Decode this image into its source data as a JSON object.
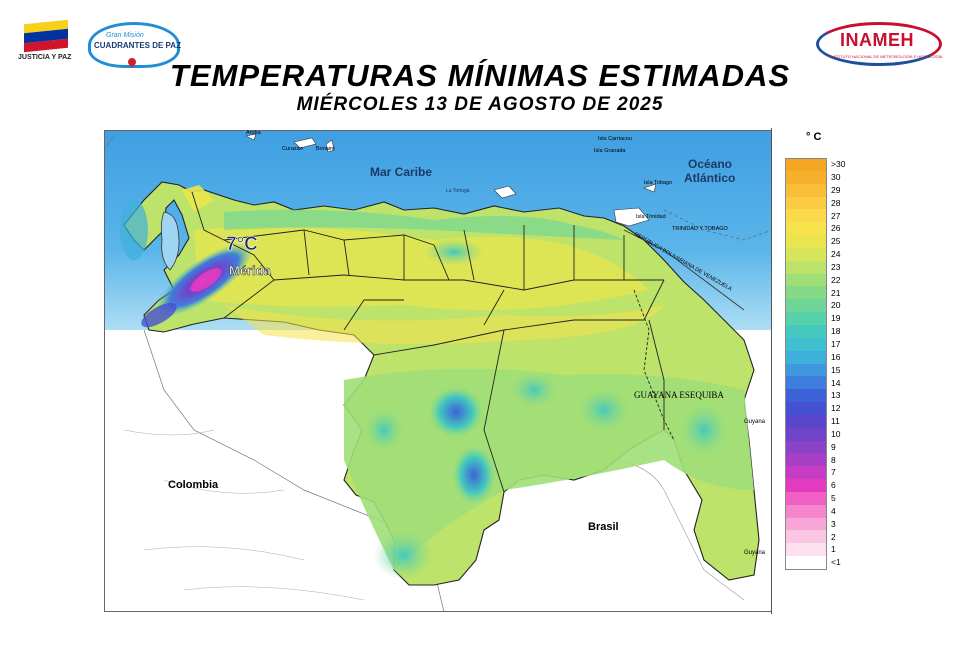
{
  "header": {
    "left_logo_caption": "JUSTICIA Y PAZ",
    "gm_logo_line1": "Gran Misión",
    "gm_logo_line2": "CUADRANTES DE PAZ",
    "inameh_logo_name": "INAMEH",
    "inameh_logo_subtitle": "INSTITUTO NACIONAL DE METEOROLOGÍA E HIDROLOGÍA",
    "title": "TEMPERATURAS MÍNIMAS ESTIMADAS",
    "subtitle": "MIÉRCOLES 13 DE AGOSTO DE 2025"
  },
  "colors": {
    "flag_yellow": "#f7d117",
    "flag_blue": "#0033a0",
    "flag_red": "#cf142b",
    "sea_deep": "#4aa8e6",
    "sea_shallow": "#bfe6f6"
  },
  "map": {
    "highlight_value": "7°C",
    "highlight_place": "Mérida",
    "labels": {
      "caribbean": "Mar Caribe",
      "atlantic_1": "Océano",
      "atlantic_2": "Atlántico",
      "colombia": "Colombia",
      "brasil": "Brasil",
      "guayana": "GUAYANA ESEQUIBA",
      "guyana_1": "Guyana",
      "guyana_2": "Guyana",
      "aruba": "Aruba",
      "curazao": "Curazao",
      "bonaire": "Bonaire",
      "la_tortuga": "La Tortuga",
      "carriacou": "Isla Carriacou",
      "granada": "Isla Granada",
      "tobago": "Isla Tobago",
      "trinidad": "Isla Trinidad",
      "tt": "TRINIDAD Y TOBAGO",
      "boundary": "REPÚBLICA BOLIVARIANA DE VENEZUELA"
    }
  },
  "legend": {
    "unit": "° C",
    "items": [
      {
        "label": ">30",
        "color": "#f5a623"
      },
      {
        "label": "30",
        "color": "#f7b02e"
      },
      {
        "label": "29",
        "color": "#f9bd3a"
      },
      {
        "label": "28",
        "color": "#fbcb44"
      },
      {
        "label": "27",
        "color": "#fcd94c"
      },
      {
        "label": "26",
        "color": "#f6e24a"
      },
      {
        "label": "25",
        "color": "#eae54e"
      },
      {
        "label": "24",
        "color": "#d6e55a"
      },
      {
        "label": "23",
        "color": "#bde36a"
      },
      {
        "label": "22",
        "color": "#a0de78"
      },
      {
        "label": "21",
        "color": "#86d987"
      },
      {
        "label": "20",
        "color": "#6fd697"
      },
      {
        "label": "19",
        "color": "#56d1aa"
      },
      {
        "label": "18",
        "color": "#45c9bf"
      },
      {
        "label": "17",
        "color": "#3fbfd0"
      },
      {
        "label": "16",
        "color": "#3fb0da"
      },
      {
        "label": "15",
        "color": "#3f98dd"
      },
      {
        "label": "14",
        "color": "#3f7edd"
      },
      {
        "label": "13",
        "color": "#3d62d8"
      },
      {
        "label": "12",
        "color": "#4650d2"
      },
      {
        "label": "11",
        "color": "#5a46cd"
      },
      {
        "label": "10",
        "color": "#7044c9"
      },
      {
        "label": "9",
        "color": "#8a42c6"
      },
      {
        "label": "8",
        "color": "#a63fc6"
      },
      {
        "label": "7",
        "color": "#c73cc4"
      },
      {
        "label": "6",
        "color": "#e23bc0"
      },
      {
        "label": "5",
        "color": "#f15ec4"
      },
      {
        "label": "4",
        "color": "#f585cc"
      },
      {
        "label": "3",
        "color": "#f8a6d8"
      },
      {
        "label": "2",
        "color": "#fbc5e4"
      },
      {
        "label": "1",
        "color": "#fde0ef"
      },
      {
        "label": "<1",
        "color": "#ffffff"
      }
    ]
  }
}
